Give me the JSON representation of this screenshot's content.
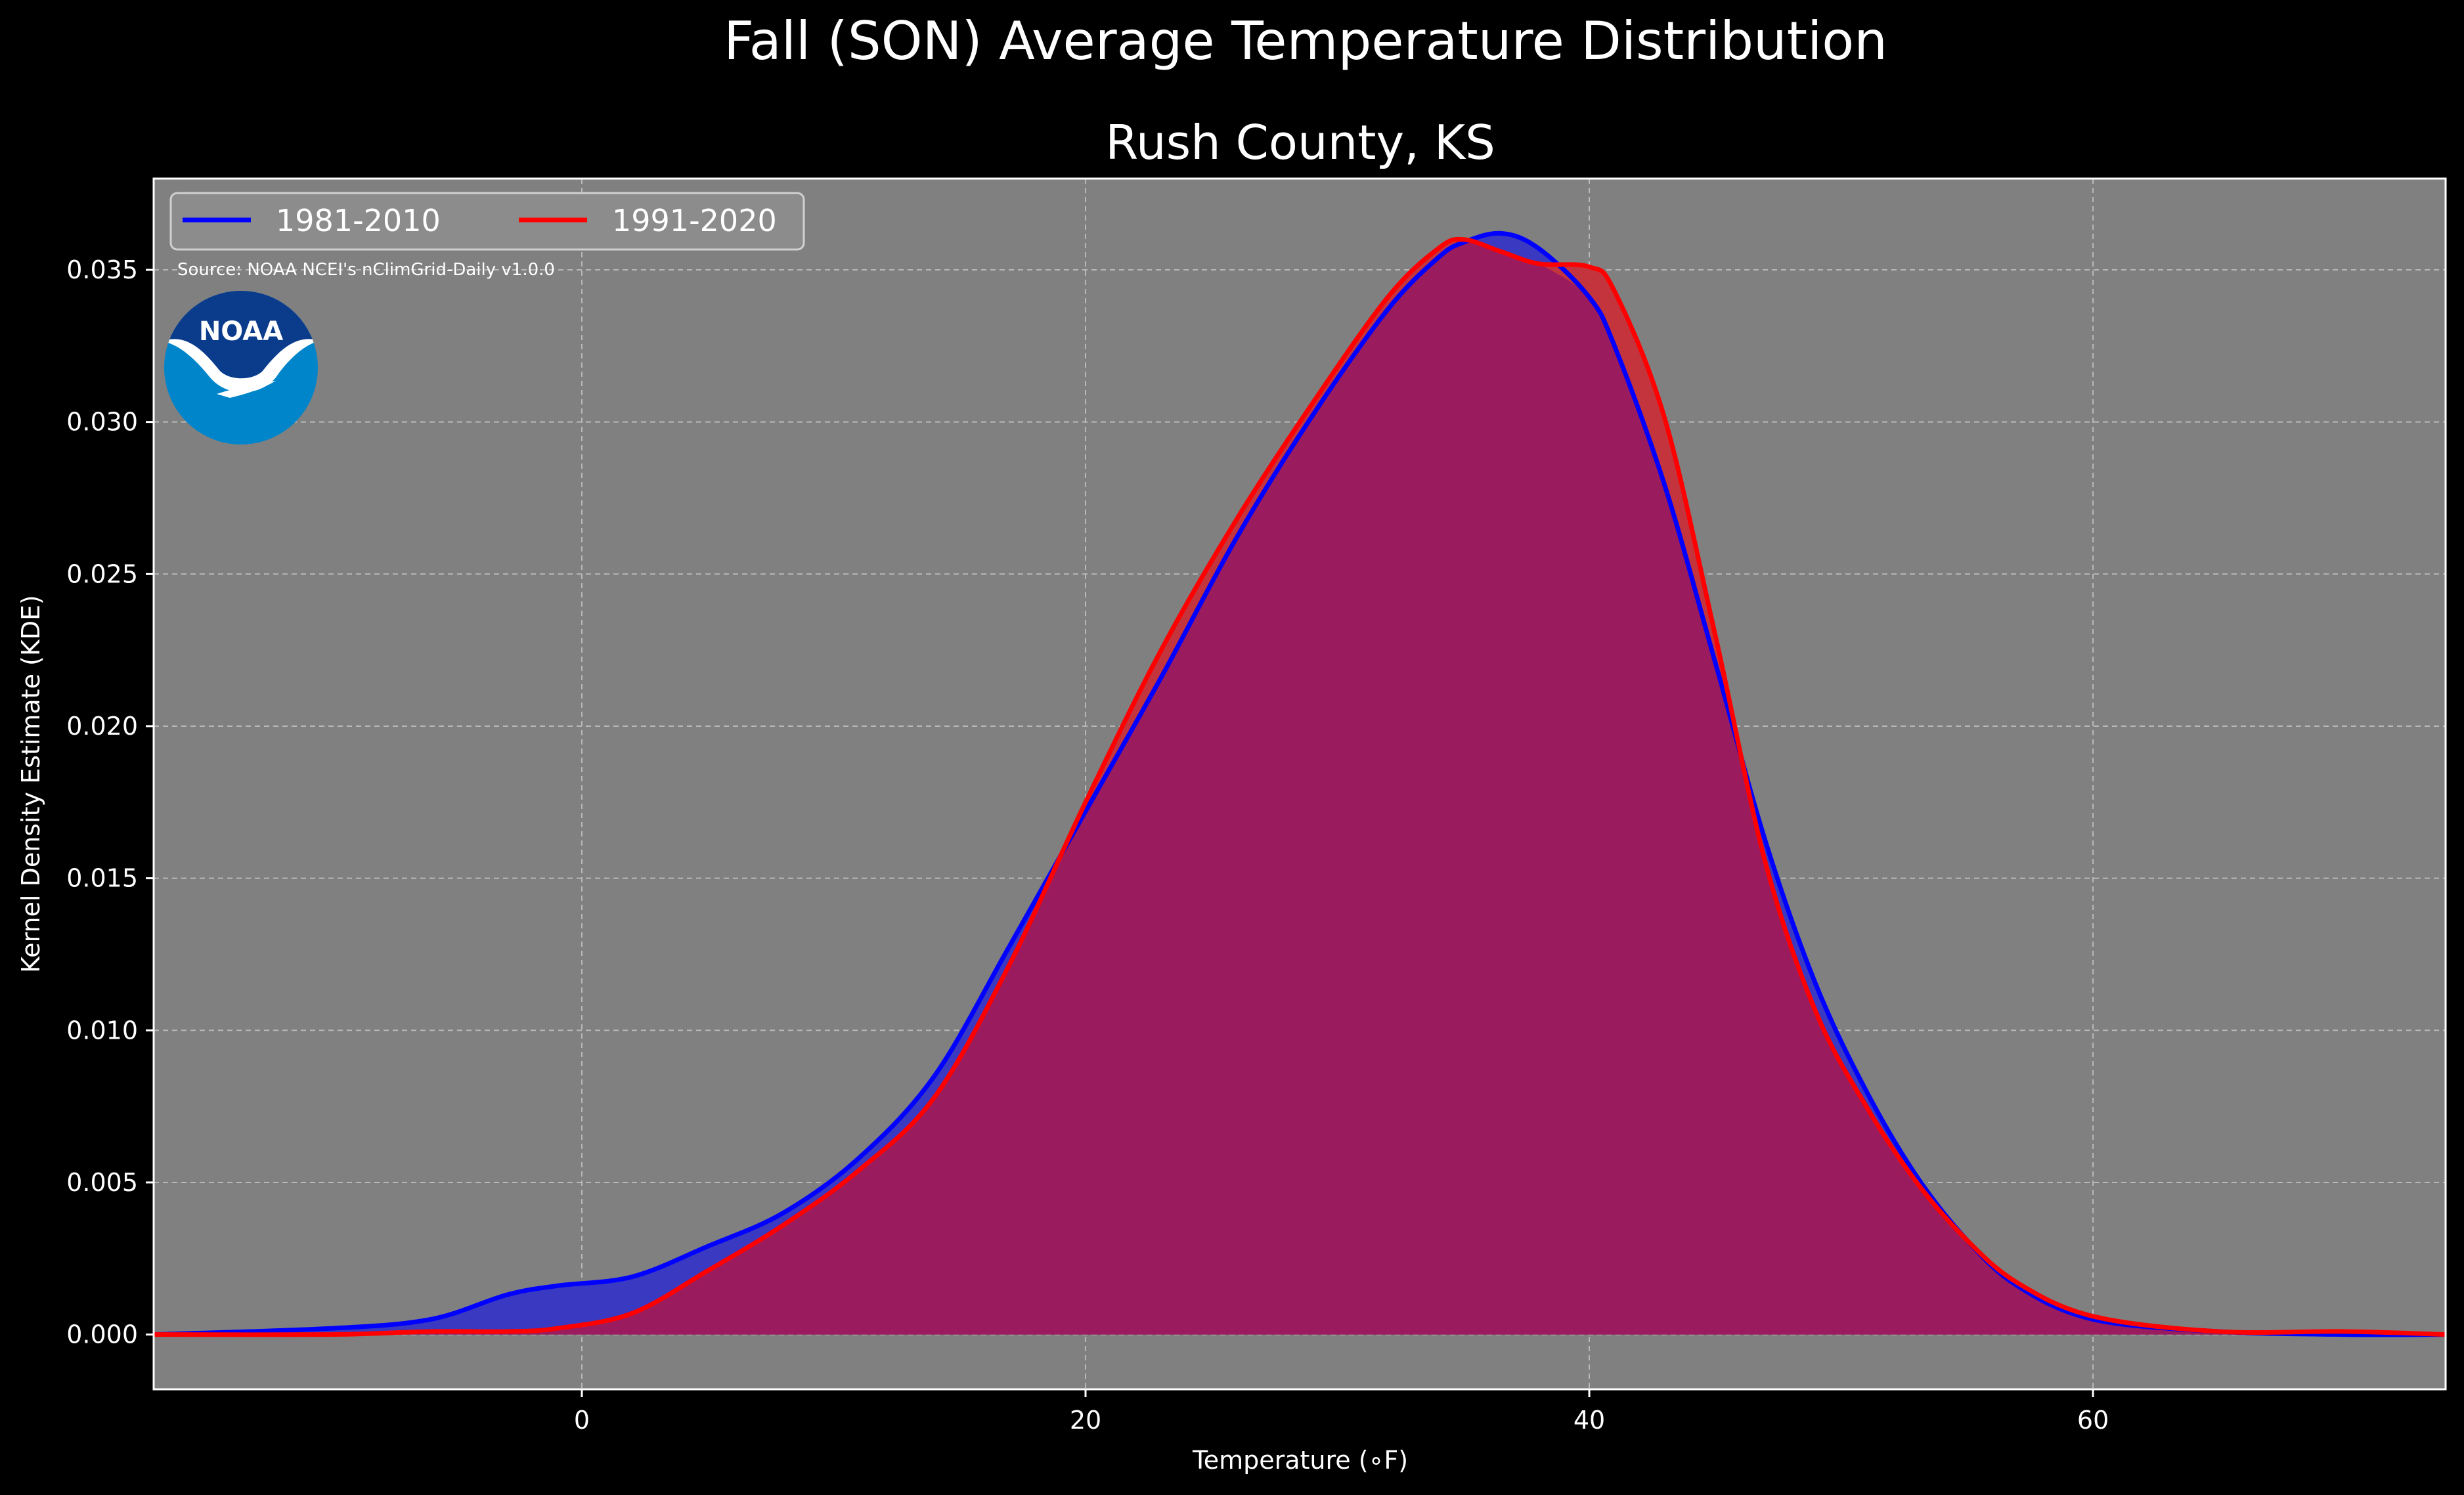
{
  "chart_data": {
    "type": "area",
    "title": "Fall (SON) Average Temperature Distribution",
    "subtitle": "Rush County, KS",
    "xlabel": "Temperature ($^\\circ$F)",
    "xlabel_display": "Temperature (∘F)",
    "ylabel": "Kernel Density Estimate (KDE)",
    "xlim": [
      -17,
      74
    ],
    "ylim": [
      -0.0018,
      0.038
    ],
    "x_ticks": [
      0,
      20,
      40,
      60
    ],
    "x_tick_labels": [
      "0",
      "20",
      "40",
      "60"
    ],
    "y_ticks": [
      0.0,
      0.005,
      0.01,
      0.015,
      0.02,
      0.025,
      0.03,
      0.035
    ],
    "y_tick_labels": [
      "0.000",
      "0.005",
      "0.010",
      "0.015",
      "0.020",
      "0.025",
      "0.030",
      "0.035"
    ],
    "grid": true,
    "legend_position": "top-left",
    "source_note": "Source: NOAA NCEI's nClimGrid-Daily v1.0.0",
    "logo_text": "NOAA",
    "x": [
      -17,
      -10,
      -6,
      -3,
      -1,
      2,
      5,
      8,
      11,
      14,
      17,
      20,
      23,
      26,
      29,
      32,
      34,
      35,
      36.5,
      38,
      40,
      41,
      43,
      45,
      47,
      49,
      51,
      53,
      55,
      57,
      60,
      65,
      70,
      74
    ],
    "series": [
      {
        "name": "1981-2010",
        "color": "#0000ff",
        "values": [
          0.0,
          0.0002,
          0.0005,
          0.0013,
          0.0016,
          0.0019,
          0.0029,
          0.004,
          0.0058,
          0.0085,
          0.0128,
          0.0172,
          0.0216,
          0.0262,
          0.0302,
          0.0337,
          0.0354,
          0.0359,
          0.0362,
          0.0357,
          0.0341,
          0.0325,
          0.0279,
          0.0221,
          0.0162,
          0.0115,
          0.008,
          0.0052,
          0.0031,
          0.0016,
          0.0005,
          0.0001,
          0.0,
          0.0
        ]
      },
      {
        "name": "1991-2020",
        "color": "#ff0000",
        "values": [
          0.0,
          0.0,
          0.0001,
          0.0001,
          0.0002,
          0.0007,
          0.0021,
          0.0036,
          0.0054,
          0.0078,
          0.0122,
          0.0175,
          0.0225,
          0.0268,
          0.0306,
          0.0341,
          0.0357,
          0.036,
          0.0356,
          0.0352,
          0.0351,
          0.0343,
          0.0301,
          0.023,
          0.0155,
          0.0106,
          0.0075,
          0.005,
          0.0031,
          0.0017,
          0.0006,
          0.0001,
          0.0001,
          0.0
        ]
      }
    ]
  },
  "colors": {
    "page_background": "#000000",
    "plot_background": "#808080",
    "blue_fill": "#3a39c2",
    "overlap_fill": "#9b1c5e",
    "red_fill": "#c4343d",
    "noaa_dark": "#0b3c8c",
    "noaa_light": "#0085ca"
  }
}
